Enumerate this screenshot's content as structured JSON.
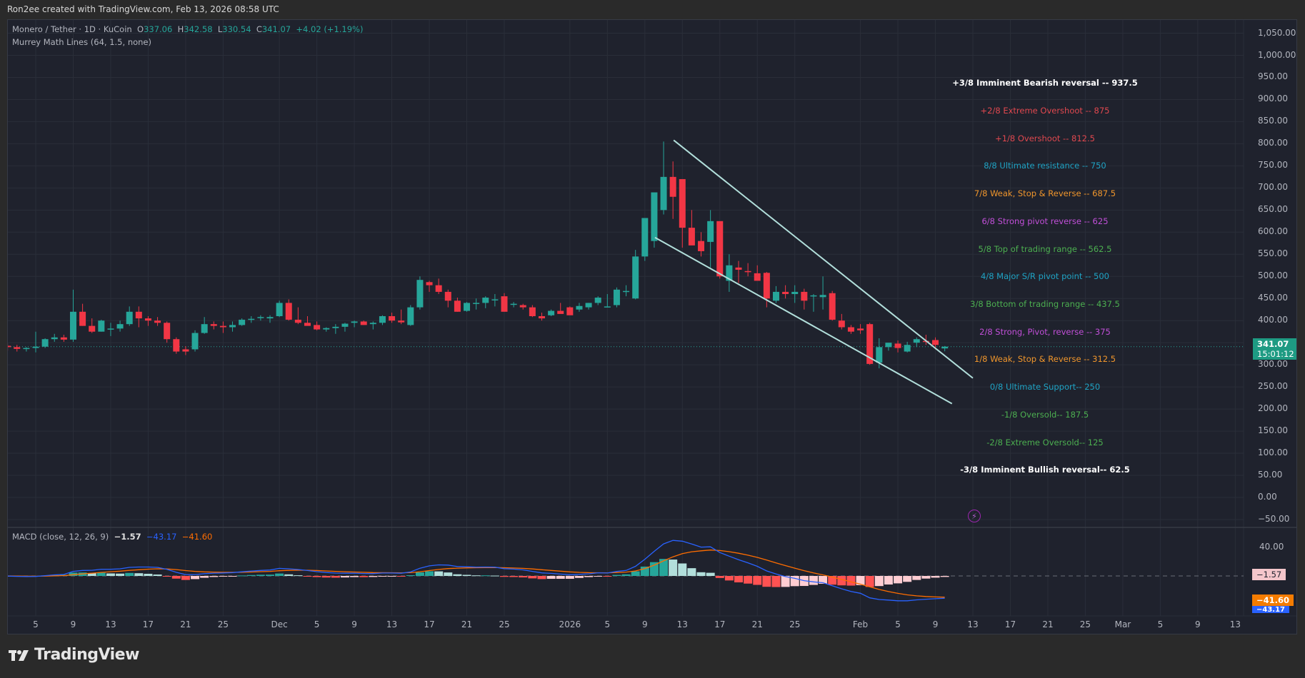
{
  "header": {
    "credit": "Ron2ee created with TradingView.com, Feb 13, 2026 08:58 UTC"
  },
  "legend": {
    "symbol": "Monero / Tether · 1D · KuCoin",
    "o_label": "O",
    "o_value": "337.06",
    "h_label": "H",
    "h_value": "342.58",
    "l_label": "L",
    "l_value": "330.54",
    "c_label": "C",
    "c_value": "341.07",
    "change": "+4.02 (+1.19%)",
    "indicator": "Murrey Math Lines (64, 1.5, none)"
  },
  "macd_legend": {
    "name": "MACD (close, 12, 26, 9)",
    "hist": "−1.57",
    "macd": "−43.17",
    "signal": "−41.60"
  },
  "price_tag": {
    "price": "341.07",
    "countdown": "15:01:12"
  },
  "macd_tags": {
    "hist": "−1.57",
    "signal": "−41.60",
    "macd": "−43.17"
  },
  "macd_axis": [
    "40.00"
  ],
  "footer": {
    "brand": "TradingView"
  },
  "colors": {
    "up": "#26a69a",
    "down": "#f23645",
    "background": "#1f222d",
    "trendline": "#b2dfdb",
    "macd_line": "#2962ff",
    "signal_line": "#ff6d00"
  },
  "chart_data": {
    "type": "candlestick",
    "title": "Monero / Tether · 1D · KuCoin",
    "ylabel": "USDT",
    "ylim": [
      -50,
      1050
    ],
    "price_ticks": [
      "1,050.00",
      "1,000.00",
      "950.00",
      "900.00",
      "850.00",
      "800.00",
      "750.00",
      "700.00",
      "650.00",
      "600.00",
      "550.00",
      "500.00",
      "450.00",
      "400.00",
      "350.00",
      "300.00",
      "250.00",
      "200.00",
      "150.00",
      "100.00",
      "50.00",
      "0.00",
      "−50.00"
    ],
    "time_ticks": [
      "5",
      "9",
      "13",
      "17",
      "21",
      "25",
      "Dec",
      "5",
      "9",
      "13",
      "17",
      "21",
      "25",
      "2026",
      "5",
      "9",
      "13",
      "17",
      "21",
      "25",
      "Feb",
      "5",
      "9",
      "13",
      "17",
      "21",
      "25",
      "Mar",
      "5",
      "9",
      "13"
    ],
    "murrey_levels": [
      {
        "label": "+3/8 Imminent Bearish reversal --  937.5",
        "value": 937.5,
        "color": "#ffffff",
        "bold": true
      },
      {
        "label": "+2/8 Extreme Overshoot --  875",
        "value": 875,
        "color": "#e0484f"
      },
      {
        "label": "+1/8 Overshoot --  812.5",
        "value": 812.5,
        "color": "#e0484f"
      },
      {
        "label": "8/8 Ultimate resistance --  750",
        "value": 750,
        "color": "#1fa3c4"
      },
      {
        "label": "7/8 Weak, Stop & Reverse --  687.5",
        "value": 687.5,
        "color": "#f0962c"
      },
      {
        "label": "6/8 Strong pivot reverse --  625",
        "value": 625,
        "color": "#c14fd8"
      },
      {
        "label": "5/8 Top of trading range --  562.5",
        "value": 562.5,
        "color": "#4caf50"
      },
      {
        "label": "4/8 Major S/R pivot point --  500",
        "value": 500,
        "color": "#1fa3c4"
      },
      {
        "label": "3/8 Bottom of trading range --  437.5",
        "value": 437.5,
        "color": "#4caf50"
      },
      {
        "label": "2/8 Strong, Pivot, reverse --  375",
        "value": 375,
        "color": "#c14fd8"
      },
      {
        "label": "1/8 Weak, Stop & Reverse --  312.5",
        "value": 312.5,
        "color": "#f0962c"
      },
      {
        "label": "0/8 Ultimate Support--  250",
        "value": 250,
        "color": "#1fa3c4"
      },
      {
        "label": "-1/8 Oversold--  187.5",
        "value": 187.5,
        "color": "#4caf50"
      },
      {
        "label": "-2/8 Extreme Oversold--  125",
        "value": 125,
        "color": "#4caf50"
      },
      {
        "label": "-3/8 Imminent Bullish reversal--  62.5",
        "value": 62.5,
        "color": "#ffffff",
        "bold": true
      }
    ],
    "candles_note": "Daily OHLC from ~Nov 1 2025 to Feb 13 2026 (day index 0 = Nov 5)",
    "candles": [
      [
        -4,
        345,
        352,
        335,
        343
      ],
      [
        -3,
        343,
        348,
        332,
        340
      ],
      [
        -2,
        340,
        345,
        330,
        336
      ],
      [
        -1,
        336,
        340,
        330,
        338
      ],
      [
        0,
        338,
        375,
        328,
        341
      ],
      [
        1,
        341,
        360,
        338,
        358
      ],
      [
        2,
        358,
        370,
        352,
        362
      ],
      [
        3,
        362,
        368,
        352,
        357
      ],
      [
        4,
        357,
        470,
        352,
        420
      ],
      [
        5,
        420,
        438,
        388,
        388
      ],
      [
        6,
        388,
        405,
        372,
        375
      ],
      [
        7,
        375,
        402,
        375,
        400
      ],
      [
        8,
        380,
        395,
        365,
        382
      ],
      [
        9,
        382,
        400,
        375,
        392
      ],
      [
        10,
        392,
        432,
        388,
        420
      ],
      [
        11,
        420,
        432,
        385,
        405
      ],
      [
        12,
        405,
        410,
        388,
        400
      ],
      [
        13,
        400,
        408,
        388,
        395
      ],
      [
        14,
        395,
        398,
        350,
        358
      ],
      [
        15,
        358,
        362,
        325,
        330
      ],
      [
        16,
        335,
        342,
        322,
        330
      ],
      [
        17,
        335,
        378,
        330,
        372
      ],
      [
        18,
        372,
        408,
        370,
        392
      ],
      [
        19,
        392,
        398,
        380,
        388
      ],
      [
        20,
        388,
        398,
        372,
        385
      ],
      [
        21,
        385,
        398,
        375,
        390
      ],
      [
        22,
        390,
        405,
        388,
        402
      ],
      [
        23,
        402,
        410,
        395,
        404
      ],
      [
        24,
        408,
        412,
        400,
        408
      ],
      [
        25,
        405,
        412,
        395,
        408
      ],
      [
        26,
        410,
        445,
        408,
        440
      ],
      [
        27,
        440,
        448,
        400,
        402
      ],
      [
        28,
        402,
        430,
        392,
        395
      ],
      [
        29,
        395,
        410,
        390,
        388
      ],
      [
        30,
        390,
        398,
        378,
        380
      ],
      [
        31,
        380,
        385,
        375,
        383
      ],
      [
        32,
        383,
        392,
        370,
        386
      ],
      [
        33,
        386,
        395,
        375,
        393
      ],
      [
        34,
        395,
        400,
        385,
        398
      ],
      [
        35,
        398,
        400,
        390,
        390
      ],
      [
        36,
        392,
        398,
        380,
        395
      ],
      [
        37,
        395,
        412,
        390,
        410
      ],
      [
        38,
        410,
        418,
        395,
        400
      ],
      [
        39,
        400,
        425,
        392,
        396
      ],
      [
        40,
        390,
        435,
        388,
        430
      ],
      [
        41,
        430,
        500,
        425,
        492
      ],
      [
        42,
        487,
        490,
        465,
        480
      ],
      [
        43,
        480,
        495,
        460,
        465
      ],
      [
        44,
        465,
        470,
        430,
        445
      ],
      [
        45,
        445,
        452,
        420,
        420
      ],
      [
        46,
        422,
        442,
        420,
        440
      ],
      [
        47,
        440,
        450,
        425,
        440
      ],
      [
        48,
        440,
        455,
        428,
        452
      ],
      [
        49,
        448,
        460,
        432,
        448
      ],
      [
        50,
        455,
        462,
        420,
        420
      ],
      [
        51,
        438,
        442,
        430,
        438
      ],
      [
        52,
        435,
        438,
        425,
        430
      ],
      [
        53,
        430,
        435,
        408,
        410
      ],
      [
        54,
        410,
        418,
        400,
        405
      ],
      [
        55,
        412,
        425,
        410,
        422
      ],
      [
        56,
        422,
        440,
        420,
        415
      ],
      [
        57,
        430,
        432,
        413,
        412
      ],
      [
        58,
        425,
        440,
        420,
        433
      ],
      [
        59,
        430,
        440,
        425,
        440
      ],
      [
        60,
        440,
        455,
        435,
        452
      ],
      [
        61,
        430,
        460,
        430,
        432
      ],
      [
        62,
        435,
        475,
        430,
        470
      ],
      [
        63,
        465,
        480,
        455,
        467
      ],
      [
        64,
        450,
        560,
        448,
        545
      ],
      [
        65,
        545,
        625,
        535,
        632
      ],
      [
        66,
        580,
        655,
        565,
        690
      ],
      [
        67,
        650,
        805,
        640,
        725
      ],
      [
        68,
        725,
        760,
        630,
        680
      ],
      [
        69,
        720,
        715,
        565,
        610
      ],
      [
        70,
        610,
        650,
        585,
        570
      ],
      [
        71,
        580,
        600,
        545,
        557
      ],
      [
        72,
        578,
        650,
        520,
        625
      ],
      [
        73,
        625,
        620,
        495,
        500
      ],
      [
        74,
        490,
        550,
        465,
        525
      ],
      [
        75,
        520,
        535,
        485,
        515
      ],
      [
        76,
        512,
        530,
        500,
        510
      ],
      [
        77,
        507,
        525,
        495,
        490
      ],
      [
        78,
        508,
        510,
        430,
        450
      ],
      [
        79,
        445,
        478,
        440,
        465
      ],
      [
        80,
        465,
        480,
        450,
        460
      ],
      [
        81,
        460,
        480,
        440,
        465
      ],
      [
        82,
        465,
        472,
        425,
        445
      ],
      [
        83,
        455,
        460,
        420,
        457
      ],
      [
        84,
        453,
        500,
        425,
        458
      ],
      [
        85,
        462,
        467,
        400,
        402
      ],
      [
        86,
        400,
        415,
        380,
        385
      ],
      [
        87,
        385,
        390,
        370,
        375
      ],
      [
        88,
        382,
        392,
        370,
        378
      ],
      [
        89,
        392,
        395,
        300,
        302
      ],
      [
        90,
        305,
        360,
        292,
        340
      ],
      [
        91,
        340,
        348,
        332,
        350
      ],
      [
        92,
        348,
        355,
        328,
        338
      ],
      [
        93,
        330,
        352,
        328,
        345
      ],
      [
        94,
        350,
        362,
        340,
        358
      ],
      [
        95,
        354,
        368,
        345,
        352
      ],
      [
        96,
        356,
        362,
        335,
        345
      ],
      [
        97,
        337.06,
        342.58,
        330.54,
        341.07
      ]
    ],
    "trendlines": [
      {
        "name": "upper",
        "from": [
          "Jan 14",
          805
        ],
        "to": [
          "Feb 13",
          270
        ]
      },
      {
        "name": "lower",
        "from": [
          "Jan 13",
          585
        ],
        "to": [
          "Feb 12",
          210
        ]
      }
    ],
    "macd": {
      "params": "close, 12, 26, 9",
      "latest": {
        "histogram": -1.57,
        "macd": -43.17,
        "signal": -41.6
      },
      "peak_macd_jan": 42,
      "trough_macd_feb": -48
    }
  }
}
